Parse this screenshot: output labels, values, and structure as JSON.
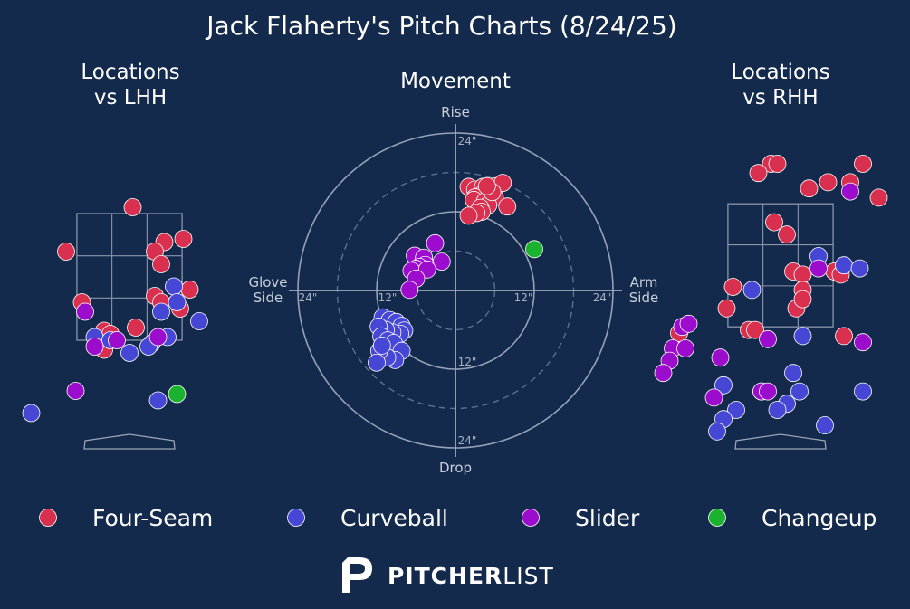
{
  "chart_data": {
    "type": "scatter",
    "title": "Jack Flaherty's Pitch Charts (8/24/25)",
    "colors": {
      "Four-Seam": "#d8304e",
      "Curveball": "#4747d6",
      "Slider": "#9b0ccc",
      "Changeup": "#1bb22f"
    },
    "legend": {
      "placement": "bottom",
      "entries": [
        "Four-Seam",
        "Curveball",
        "Slider",
        "Changeup"
      ]
    },
    "panels": {
      "lhh": {
        "title_lines": [
          "Locations",
          "vs LHH"
        ],
        "x_range": [
          -2.0,
          2.0
        ],
        "y_range": [
          0.0,
          5.0
        ],
        "points": [
          {
            "type": "Four-Seam",
            "x": 0.05,
            "y": 3.7
          },
          {
            "type": "Four-Seam",
            "x": 0.85,
            "y": 3.2
          },
          {
            "type": "Four-Seam",
            "x": 0.55,
            "y": 3.15
          },
          {
            "type": "Four-Seam",
            "x": 0.4,
            "y": 3.0
          },
          {
            "type": "Four-Seam",
            "x": -1.0,
            "y": 3.0
          },
          {
            "type": "Four-Seam",
            "x": 0.5,
            "y": 2.8
          },
          {
            "type": "Four-Seam",
            "x": 0.95,
            "y": 2.4
          },
          {
            "type": "Four-Seam",
            "x": 0.4,
            "y": 2.3
          },
          {
            "type": "Four-Seam",
            "x": -0.75,
            "y": 2.2
          },
          {
            "type": "Four-Seam",
            "x": 0.5,
            "y": 2.2
          },
          {
            "type": "Four-Seam",
            "x": 0.8,
            "y": 2.1
          },
          {
            "type": "Four-Seam",
            "x": 0.1,
            "y": 1.8
          },
          {
            "type": "Four-Seam",
            "x": -0.4,
            "y": 1.75
          },
          {
            "type": "Four-Seam",
            "x": -0.3,
            "y": 1.7
          },
          {
            "type": "Four-Seam",
            "x": -0.4,
            "y": 1.45
          },
          {
            "type": "Curveball",
            "x": 0.7,
            "y": 2.45
          },
          {
            "type": "Curveball",
            "x": 0.75,
            "y": 2.2
          },
          {
            "type": "Curveball",
            "x": 0.5,
            "y": 2.05
          },
          {
            "type": "Curveball",
            "x": 1.1,
            "y": 1.9
          },
          {
            "type": "Curveball",
            "x": -0.55,
            "y": 1.65
          },
          {
            "type": "Curveball",
            "x": -0.3,
            "y": 1.6
          },
          {
            "type": "Curveball",
            "x": 0.35,
            "y": 1.55
          },
          {
            "type": "Curveball",
            "x": 0.6,
            "y": 1.65
          },
          {
            "type": "Curveball",
            "x": 0.3,
            "y": 1.5
          },
          {
            "type": "Curveball",
            "x": 0.0,
            "y": 1.4
          },
          {
            "type": "Curveball",
            "x": -1.55,
            "y": 0.45
          },
          {
            "type": "Curveball",
            "x": 0.45,
            "y": 0.65
          },
          {
            "type": "Slider",
            "x": -0.7,
            "y": 2.05
          },
          {
            "type": "Slider",
            "x": -0.2,
            "y": 1.6
          },
          {
            "type": "Slider",
            "x": 0.45,
            "y": 1.65
          },
          {
            "type": "Slider",
            "x": -0.55,
            "y": 1.5
          },
          {
            "type": "Slider",
            "x": -0.85,
            "y": 0.8
          },
          {
            "type": "Changeup",
            "x": 0.75,
            "y": 0.75
          }
        ]
      },
      "movement": {
        "title": "Movement",
        "labels": {
          "top": "Rise",
          "bottom": "Drop",
          "left": "Glove\nSide",
          "right": "Arm\nSide"
        },
        "tick_labels": [
          "24\"",
          "12\"",
          "12\"",
          "24\"",
          "24\"",
          "12\""
        ],
        "ring_radii_in": [
          6,
          12,
          18,
          24
        ],
        "range_in": 24,
        "points": [
          {
            "type": "Four-Seam",
            "x": 2.0,
            "y": 15.8
          },
          {
            "type": "Four-Seam",
            "x": 3.0,
            "y": 15.4
          },
          {
            "type": "Four-Seam",
            "x": 4.2,
            "y": 15.8
          },
          {
            "type": "Four-Seam",
            "x": 5.0,
            "y": 15.6
          },
          {
            "type": "Four-Seam",
            "x": 6.0,
            "y": 15.9
          },
          {
            "type": "Four-Seam",
            "x": 7.2,
            "y": 16.4
          },
          {
            "type": "Four-Seam",
            "x": 5.4,
            "y": 14.8
          },
          {
            "type": "Four-Seam",
            "x": 4.0,
            "y": 14.6
          },
          {
            "type": "Four-Seam",
            "x": 3.0,
            "y": 14.2
          },
          {
            "type": "Four-Seam",
            "x": 2.8,
            "y": 13.8
          },
          {
            "type": "Four-Seam",
            "x": 4.5,
            "y": 13.6
          },
          {
            "type": "Four-Seam",
            "x": 6.0,
            "y": 14.2
          },
          {
            "type": "Four-Seam",
            "x": 5.0,
            "y": 13.0
          },
          {
            "type": "Four-Seam",
            "x": 3.8,
            "y": 12.6
          },
          {
            "type": "Four-Seam",
            "x": 4.0,
            "y": 12.0
          },
          {
            "type": "Four-Seam",
            "x": 3.2,
            "y": 11.8
          },
          {
            "type": "Four-Seam",
            "x": 2.0,
            "y": 11.4
          },
          {
            "type": "Four-Seam",
            "x": 7.9,
            "y": 12.8
          },
          {
            "type": "Four-Seam",
            "x": 5.6,
            "y": 15.0
          },
          {
            "type": "Four-Seam",
            "x": 4.8,
            "y": 15.9
          },
          {
            "type": "Curveball",
            "x": -11.1,
            "y": -4.1
          },
          {
            "type": "Curveball",
            "x": -10.0,
            "y": -4.5
          },
          {
            "type": "Curveball",
            "x": -9.0,
            "y": -4.8
          },
          {
            "type": "Curveball",
            "x": -8.2,
            "y": -5.4
          },
          {
            "type": "Curveball",
            "x": -7.8,
            "y": -6.1
          },
          {
            "type": "Curveball",
            "x": -8.4,
            "y": -6.6
          },
          {
            "type": "Curveball",
            "x": -9.6,
            "y": -6.4
          },
          {
            "type": "Curveball",
            "x": -10.6,
            "y": -6.0
          },
          {
            "type": "Curveball",
            "x": -11.7,
            "y": -5.5
          },
          {
            "type": "Curveball",
            "x": -11.3,
            "y": -7.0
          },
          {
            "type": "Curveball",
            "x": -10.3,
            "y": -7.6
          },
          {
            "type": "Curveball",
            "x": -9.4,
            "y": -8.0
          },
          {
            "type": "Curveball",
            "x": -8.2,
            "y": -9.2
          },
          {
            "type": "Curveball",
            "x": -9.2,
            "y": -10.6
          },
          {
            "type": "Curveball",
            "x": -10.4,
            "y": -10.2
          },
          {
            "type": "Curveball",
            "x": -11.6,
            "y": -9.2
          },
          {
            "type": "Curveball",
            "x": -12.0,
            "y": -11.0
          },
          {
            "type": "Curveball",
            "x": -11.2,
            "y": -8.4
          },
          {
            "type": "Slider",
            "x": -3.1,
            "y": 7.2
          },
          {
            "type": "Slider",
            "x": -6.2,
            "y": 5.3
          },
          {
            "type": "Slider",
            "x": -4.8,
            "y": 5.0
          },
          {
            "type": "Slider",
            "x": -2.1,
            "y": 4.4
          },
          {
            "type": "Slider",
            "x": -4.6,
            "y": 3.9
          },
          {
            "type": "Slider",
            "x": -5.5,
            "y": 3.6
          },
          {
            "type": "Slider",
            "x": -6.0,
            "y": 3.3
          },
          {
            "type": "Slider",
            "x": -6.7,
            "y": 3.0
          },
          {
            "type": "Slider",
            "x": -4.3,
            "y": 3.2
          },
          {
            "type": "Slider",
            "x": -6.0,
            "y": 1.8
          },
          {
            "type": "Slider",
            "x": -7.0,
            "y": 0.1
          },
          {
            "type": "Changeup",
            "x": 12.0,
            "y": 6.3
          }
        ]
      },
      "rhh": {
        "title_lines": [
          "Locations",
          "vs RHH"
        ],
        "x_range": [
          -2.0,
          2.0
        ],
        "y_range": [
          0.0,
          5.0
        ],
        "points": [
          {
            "type": "Four-Seam",
            "x": -0.15,
            "y": 4.25
          },
          {
            "type": "Four-Seam",
            "x": -0.05,
            "y": 4.25
          },
          {
            "type": "Four-Seam",
            "x": 1.3,
            "y": 4.25
          },
          {
            "type": "Four-Seam",
            "x": -0.35,
            "y": 4.1
          },
          {
            "type": "Four-Seam",
            "x": 0.75,
            "y": 3.95
          },
          {
            "type": "Four-Seam",
            "x": 1.1,
            "y": 3.95
          },
          {
            "type": "Four-Seam",
            "x": 0.45,
            "y": 3.85
          },
          {
            "type": "Four-Seam",
            "x": 1.55,
            "y": 3.7
          },
          {
            "type": "Four-Seam",
            "x": -0.1,
            "y": 3.3
          },
          {
            "type": "Four-Seam",
            "x": 0.1,
            "y": 3.1
          },
          {
            "type": "Four-Seam",
            "x": 0.2,
            "y": 2.5
          },
          {
            "type": "Four-Seam",
            "x": 0.35,
            "y": 2.45
          },
          {
            "type": "Four-Seam",
            "x": 0.85,
            "y": 2.5
          },
          {
            "type": "Four-Seam",
            "x": 0.95,
            "y": 2.45
          },
          {
            "type": "Four-Seam",
            "x": -0.75,
            "y": 2.25
          },
          {
            "type": "Four-Seam",
            "x": 0.35,
            "y": 2.2
          },
          {
            "type": "Four-Seam",
            "x": 0.25,
            "y": 1.9
          },
          {
            "type": "Four-Seam",
            "x": -0.85,
            "y": 1.9
          },
          {
            "type": "Four-Seam",
            "x": 0.35,
            "y": 2.05
          },
          {
            "type": "Four-Seam",
            "x": -0.5,
            "y": 1.55
          },
          {
            "type": "Four-Seam",
            "x": -0.4,
            "y": 1.55
          },
          {
            "type": "Four-Seam",
            "x": 1.0,
            "y": 1.45
          },
          {
            "type": "Four-Seam",
            "x": -1.6,
            "y": 1.5
          },
          {
            "type": "Curveball",
            "x": 0.6,
            "y": 2.75
          },
          {
            "type": "Curveball",
            "x": 1.0,
            "y": 2.6
          },
          {
            "type": "Curveball",
            "x": 1.25,
            "y": 2.55
          },
          {
            "type": "Curveball",
            "x": -0.45,
            "y": 2.2
          },
          {
            "type": "Curveball",
            "x": 0.35,
            "y": 1.45
          },
          {
            "type": "Curveball",
            "x": 0.2,
            "y": 0.85
          },
          {
            "type": "Curveball",
            "x": -0.9,
            "y": 0.65
          },
          {
            "type": "Curveball",
            "x": -0.3,
            "y": 0.55
          },
          {
            "type": "Curveball",
            "x": 0.3,
            "y": 0.55
          },
          {
            "type": "Curveball",
            "x": 1.3,
            "y": 0.55
          },
          {
            "type": "Curveball",
            "x": 0.1,
            "y": 0.35
          },
          {
            "type": "Curveball",
            "x": -0.05,
            "y": 0.25
          },
          {
            "type": "Curveball",
            "x": -0.7,
            "y": 0.25
          },
          {
            "type": "Curveball",
            "x": -0.9,
            "y": 0.1
          },
          {
            "type": "Curveball",
            "x": -1.0,
            "y": -0.1
          },
          {
            "type": "Curveball",
            "x": 0.7,
            "y": 0.0
          },
          {
            "type": "Curveball",
            "x": 2.5,
            "y": 1.85
          },
          {
            "type": "Curveball",
            "x": 2.9,
            "y": 1.7
          },
          {
            "type": "Slider",
            "x": 1.1,
            "y": 3.8
          },
          {
            "type": "Slider",
            "x": 0.6,
            "y": 2.55
          },
          {
            "type": "Slider",
            "x": -1.55,
            "y": 1.6
          },
          {
            "type": "Slider",
            "x": -1.45,
            "y": 1.65
          },
          {
            "type": "Slider",
            "x": -0.2,
            "y": 1.4
          },
          {
            "type": "Slider",
            "x": 1.3,
            "y": 1.35
          },
          {
            "type": "Slider",
            "x": -1.7,
            "y": 1.25
          },
          {
            "type": "Slider",
            "x": -1.5,
            "y": 1.25
          },
          {
            "type": "Slider",
            "x": -0.95,
            "y": 1.1
          },
          {
            "type": "Slider",
            "x": -1.75,
            "y": 1.05
          },
          {
            "type": "Slider",
            "x": -1.85,
            "y": 0.85
          },
          {
            "type": "Slider",
            "x": -0.3,
            "y": 0.55
          },
          {
            "type": "Slider",
            "x": -0.2,
            "y": 0.55
          },
          {
            "type": "Slider",
            "x": -1.05,
            "y": 0.45
          }
        ]
      }
    }
  },
  "branding": {
    "logo_bold": "PITCHER",
    "logo_light": "LIST"
  }
}
